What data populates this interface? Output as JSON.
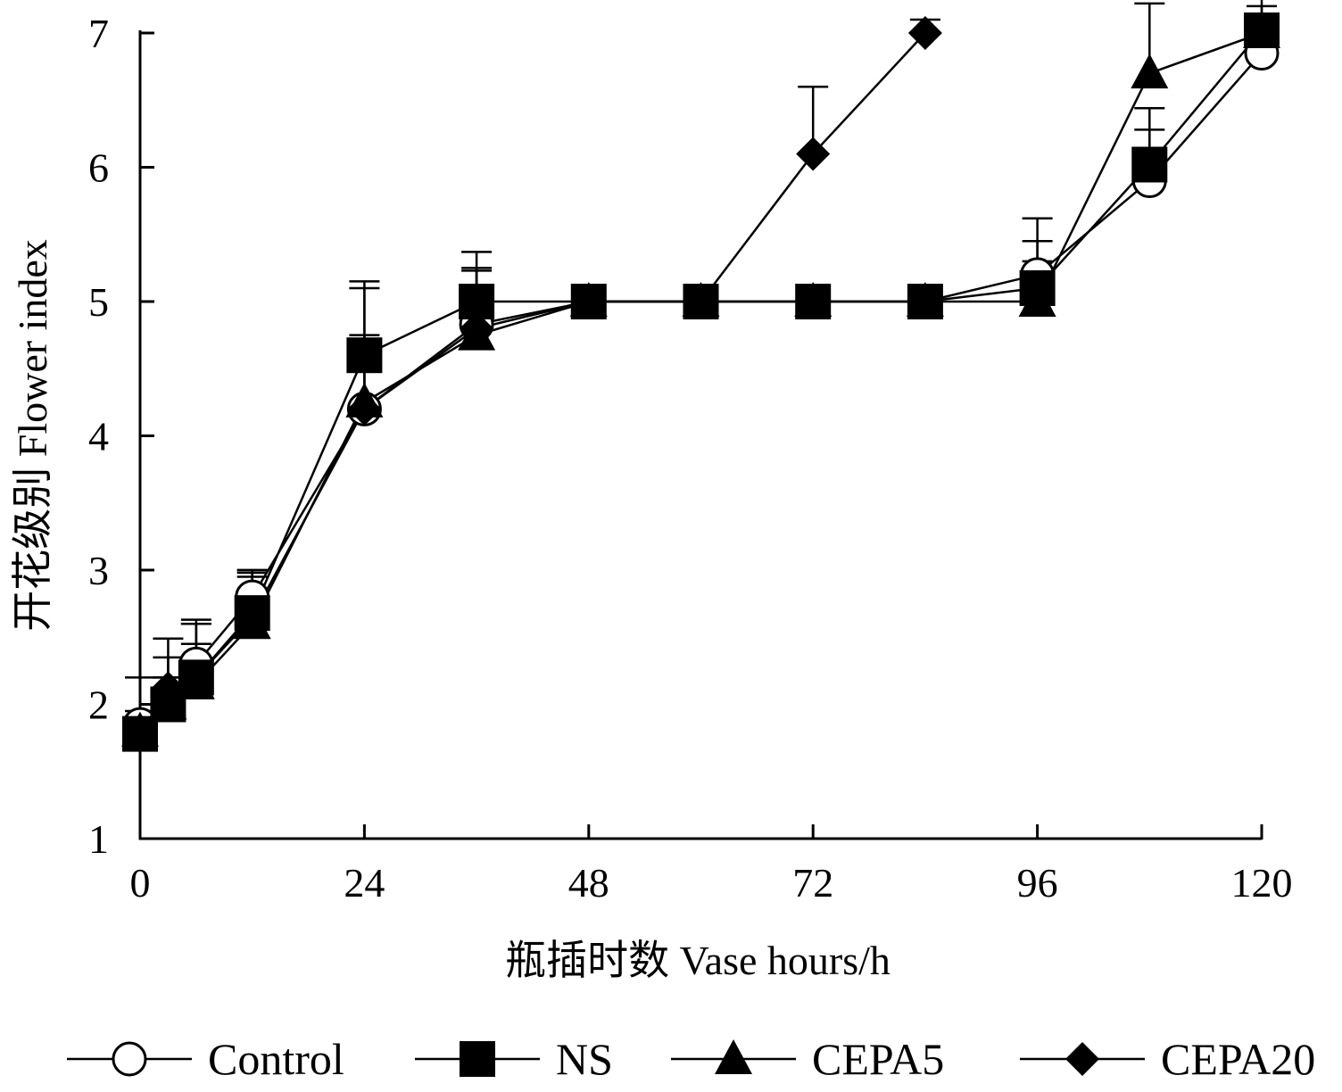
{
  "chart_data": {
    "type": "line",
    "xlabel": "瓶插时数  Vase hours/h",
    "ylabel": "开花级别  Flower index",
    "xlim": [
      0,
      120
    ],
    "ylim": [
      1,
      7
    ],
    "x_ticks": [
      "0",
      "24",
      "48",
      "72",
      "96",
      "120"
    ],
    "y_ticks": [
      "1",
      "2",
      "3",
      "4",
      "5",
      "6",
      "7"
    ],
    "grid": false,
    "legend_position": "bottom",
    "series": [
      {
        "name": "Control",
        "marker": "circle-open",
        "points": [
          {
            "x": 0,
            "y": 1.85,
            "err": 0.35
          },
          {
            "x": 3,
            "y": 2.05,
            "err": 0.3
          },
          {
            "x": 6,
            "y": 2.3,
            "err": 0.3
          },
          {
            "x": 12,
            "y": 2.8,
            "err": 0.2
          },
          {
            "x": 24,
            "y": 4.2,
            "err": 0.9
          },
          {
            "x": 36,
            "y": 4.83,
            "err": 0.4
          },
          {
            "x": 48,
            "y": 5.0
          },
          {
            "x": 60,
            "y": 5.0
          },
          {
            "x": 72,
            "y": 5.0
          },
          {
            "x": 84,
            "y": 5.0
          },
          {
            "x": 96,
            "y": 5.2,
            "err": 0.42
          },
          {
            "x": 108,
            "y": 5.9,
            "err": 0.38
          },
          {
            "x": 120,
            "y": 6.85,
            "err": 0.28
          }
        ]
      },
      {
        "name": "NS",
        "marker": "square-filled",
        "points": [
          {
            "x": 0,
            "y": 1.78,
            "err": 0.1
          },
          {
            "x": 3,
            "y": 2.0,
            "err": 0.2
          },
          {
            "x": 6,
            "y": 2.2,
            "err": 0.43
          },
          {
            "x": 12,
            "y": 2.68,
            "err": 0.3
          },
          {
            "x": 24,
            "y": 4.6,
            "err": 0.55
          },
          {
            "x": 36,
            "y": 5.0,
            "err": 0.37
          },
          {
            "x": 48,
            "y": 5.0
          },
          {
            "x": 60,
            "y": 5.0
          },
          {
            "x": 72,
            "y": 5.0
          },
          {
            "x": 84,
            "y": 5.0
          },
          {
            "x": 96,
            "y": 5.1,
            "err": 0.35
          },
          {
            "x": 108,
            "y": 6.02,
            "err": 0.42
          },
          {
            "x": 120,
            "y": 7.02,
            "err": 0.25
          }
        ]
      },
      {
        "name": "CEPA5",
        "marker": "triangle-filled",
        "points": [
          {
            "x": 0,
            "y": 1.8,
            "err": 0.15
          },
          {
            "x": 3,
            "y": 2.0,
            "err": 0.2
          },
          {
            "x": 6,
            "y": 2.15,
            "err": 0.3
          },
          {
            "x": 12,
            "y": 2.6,
            "err": 0.4
          },
          {
            "x": 24,
            "y": 4.25,
            "err": 0.5
          },
          {
            "x": 36,
            "y": 4.75,
            "err": 0.5
          },
          {
            "x": 48,
            "y": 5.0
          },
          {
            "x": 60,
            "y": 5.0
          },
          {
            "x": 72,
            "y": 5.0
          },
          {
            "x": 84,
            "y": 5.0
          },
          {
            "x": 96,
            "y": 5.0,
            "err": 0.3
          },
          {
            "x": 108,
            "y": 6.7,
            "err": 0.52
          },
          {
            "x": 120,
            "y": 7.0,
            "err": 0.2
          }
        ]
      },
      {
        "name": "CEPA20",
        "marker": "diamond-filled",
        "points": [
          {
            "x": 0,
            "y": 1.8,
            "err": 0.1
          },
          {
            "x": 3,
            "y": 2.12,
            "err": 0.37
          },
          {
            "x": 6,
            "y": 2.2,
            "err": 0.4
          },
          {
            "x": 12,
            "y": 2.65,
            "err": 0.3
          },
          {
            "x": 24,
            "y": 4.2,
            "err": 0.3
          },
          {
            "x": 36,
            "y": 4.8,
            "err": 0.3
          },
          {
            "x": 48,
            "y": 5.0
          },
          {
            "x": 60,
            "y": 5.0
          },
          {
            "x": 72,
            "y": 6.1,
            "err": 0.5
          },
          {
            "x": 84,
            "y": 7.0,
            "err": 0.1
          }
        ]
      }
    ]
  }
}
